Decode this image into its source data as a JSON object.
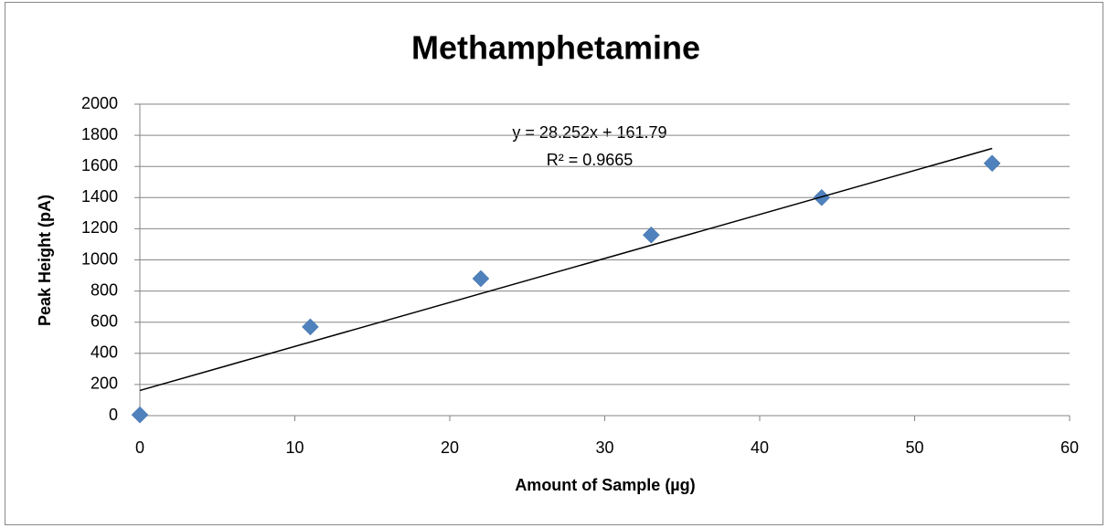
{
  "chart_data": {
    "type": "scatter",
    "title": "Methamphetamine",
    "x_label": "Amount of Sample (µg)",
    "y_label": "Peak Height (pA)",
    "series": [
      {
        "name": "Peak Height",
        "color": "#4f81bd",
        "x": [
          0,
          11,
          22,
          33,
          44,
          55
        ],
        "values": [
          5,
          570,
          880,
          1160,
          1400,
          1620
        ]
      }
    ],
    "trendline": {
      "slope": 28.252,
      "intercept": 161.79,
      "label": "y = 28.252x + 161.79",
      "r2_label": "R² = 0.9665"
    },
    "xlim": [
      0,
      60
    ],
    "xticks": [
      0,
      10,
      20,
      30,
      40,
      50,
      60
    ],
    "ylim": [
      0,
      2000
    ],
    "yticks": [
      0,
      200,
      400,
      600,
      800,
      1000,
      1200,
      1400,
      1600,
      1800,
      2000
    ],
    "grid": true
  }
}
